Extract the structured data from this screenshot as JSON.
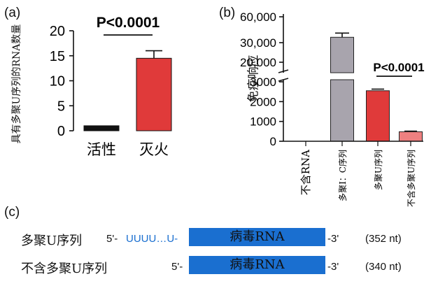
{
  "panels": {
    "a": {
      "label": "(a)",
      "chart_data": {
        "type": "bar",
        "categories": [
          "活性",
          "灭火"
        ],
        "values": [
          1,
          14.5
        ],
        "errors": [
          0,
          1.5
        ],
        "colors": [
          "#111111",
          "#e03a3a"
        ],
        "ylabel": "具有多聚U序列的RNA数量",
        "ylim": [
          0,
          20
        ],
        "yticks": [
          "0",
          "5",
          "10",
          "15",
          "20"
        ],
        "annotation": "P<0.0001"
      }
    },
    "b": {
      "label": "(b)",
      "chart_data": {
        "type": "bar",
        "categories": [
          "不含RNA",
          "多聚I：C序列",
          "多聚U序列",
          "不含多聚U序列"
        ],
        "values": [
          0,
          35000,
          2550,
          480
        ],
        "errors": [
          0,
          1300,
          80,
          30
        ],
        "colors": [
          "#888888",
          "#a8a4ad",
          "#e03a3a",
          "#ee8080"
        ],
        "ylabel": "免疫响应",
        "axis_break": true,
        "yticks_lower": [
          "0",
          "1000",
          "2000",
          "3000"
        ],
        "yticks_upper": [
          "20,000",
          "30,000",
          "60,000"
        ],
        "annotation": "P<0.0001"
      }
    },
    "c": {
      "label": "(c)",
      "rows": [
        {
          "name": "多聚U序列",
          "prefix5": "5'-",
          "polyu": "UUUU…U-",
          "rna": "病毒RNA",
          "suffix3": "-3'",
          "length": "(352 nt)"
        },
        {
          "name": "不含多聚U序列",
          "prefix5": "5'-",
          "polyu": "",
          "rna": "病毒RNA",
          "suffix3": "-3'",
          "length": "(340 nt)"
        }
      ],
      "colors": {
        "rna_box": "#1a6fd0",
        "polyu_text": "#1a6fd0"
      }
    }
  }
}
